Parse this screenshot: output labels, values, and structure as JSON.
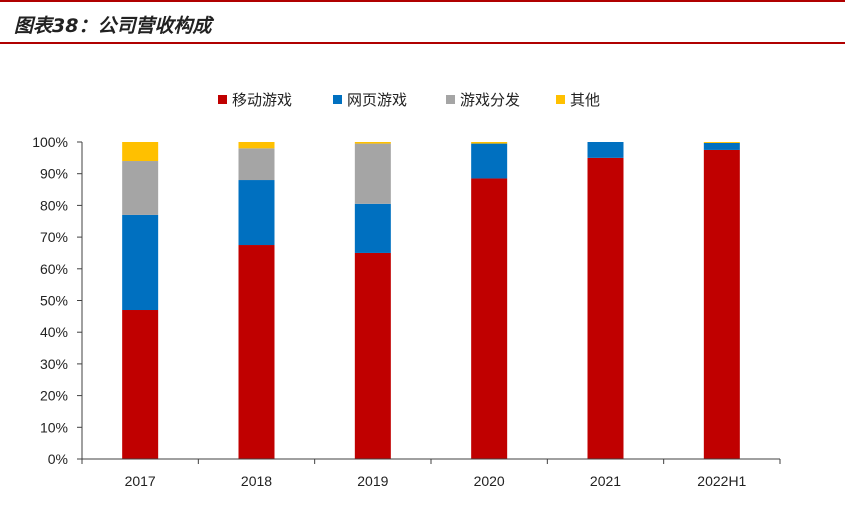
{
  "title": "图表38：公司营收构成",
  "colors": {
    "mobile": "#c00000",
    "web": "#0070c0",
    "distribution": "#a5a5a5",
    "other": "#ffc000",
    "accent": "#b00000"
  },
  "chart_data": {
    "type": "bar",
    "stacked": true,
    "categories": [
      "2017",
      "2018",
      "2019",
      "2020",
      "2021",
      "2022H1"
    ],
    "ylim": [
      0,
      100
    ],
    "yticks": [
      "0%",
      "10%",
      "20%",
      "30%",
      "40%",
      "50%",
      "60%",
      "70%",
      "80%",
      "90%",
      "100%"
    ],
    "legend_position": "top",
    "grid": false,
    "series": [
      {
        "name": "移动游戏",
        "color": "#c00000",
        "values": [
          47,
          67.5,
          65,
          88.5,
          95,
          97.5
        ]
      },
      {
        "name": "网页游戏",
        "color": "#0070c0",
        "values": [
          30,
          20.5,
          15.5,
          11,
          5,
          2.2
        ]
      },
      {
        "name": "游戏分发",
        "color": "#a5a5a5",
        "values": [
          17,
          10,
          19,
          0,
          0,
          0
        ]
      },
      {
        "name": "其他",
        "color": "#ffc000",
        "values": [
          6,
          2,
          0.5,
          0.5,
          0,
          0.3
        ]
      }
    ]
  }
}
